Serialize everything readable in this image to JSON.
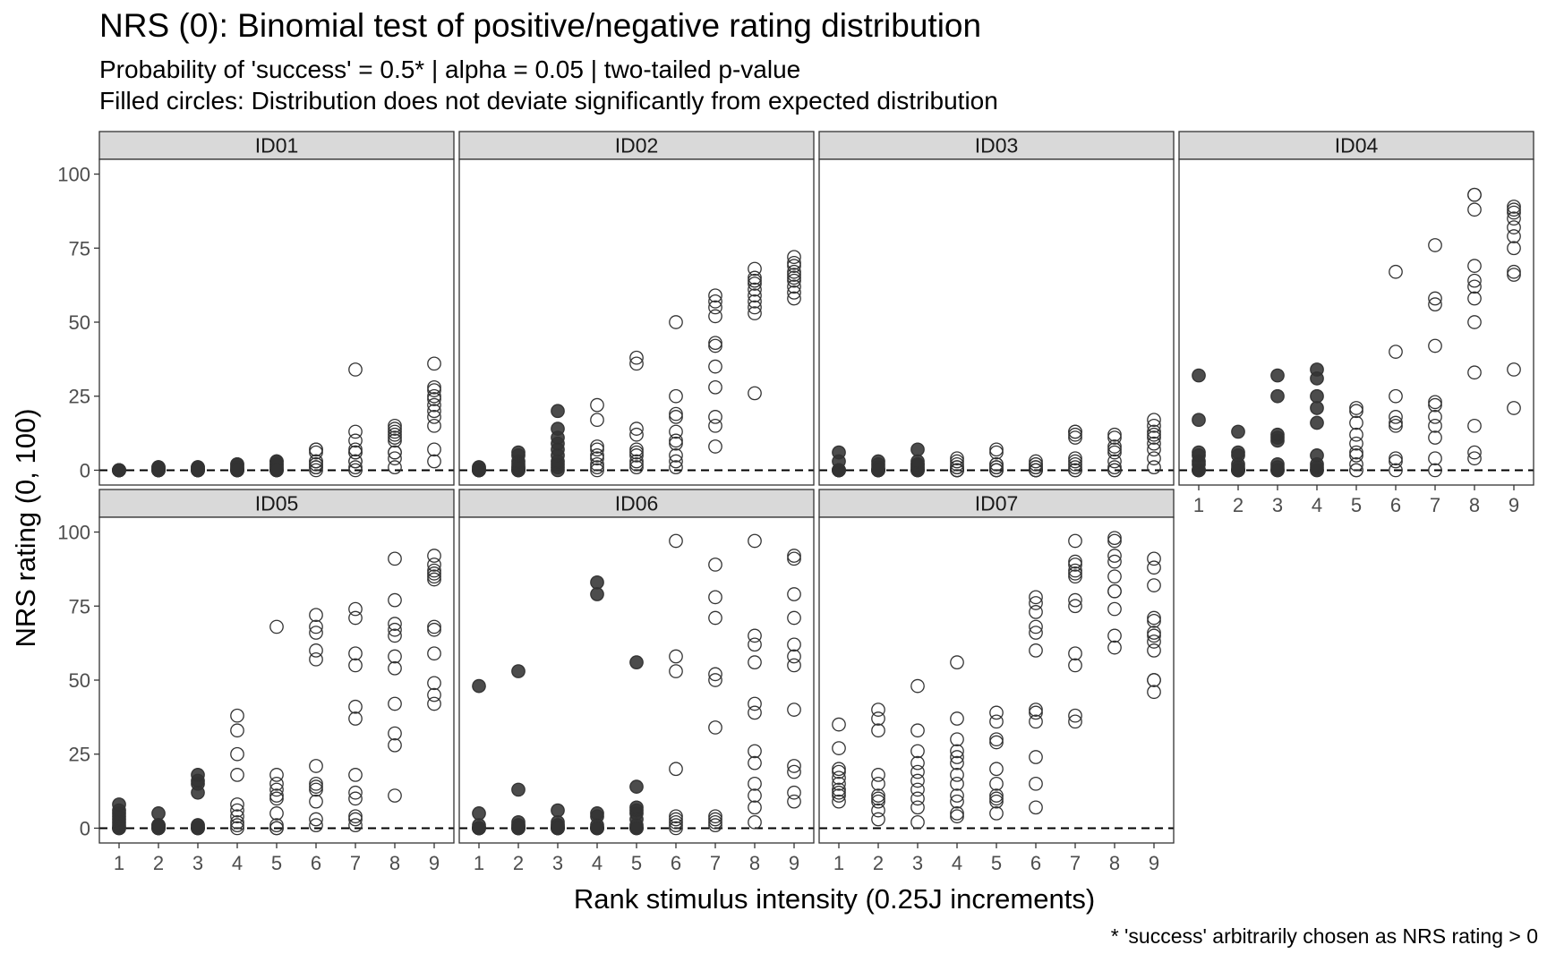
{
  "chart_data": {
    "type": "scatter",
    "title": "NRS (0): Binomial test of positive/negative rating distribution",
    "subtitle_lines": [
      "Probability of 'success' = 0.5* | alpha = 0.05 | two-tailed p-value",
      "Filled circles: Distribution does not deviate significantly from expected distribution"
    ],
    "xlabel": "Rank stimulus intensity (0.25J increments)",
    "ylabel": "NRS rating (0, 100)",
    "caption": "* 'success' arbitrarily chosen as NRS rating > 0",
    "x_ticks": [
      1,
      2,
      3,
      4,
      5,
      6,
      7,
      8,
      9
    ],
    "y_ticks": [
      0,
      25,
      50,
      75,
      100
    ],
    "ylim": [
      -5,
      105
    ],
    "xlim": [
      0.5,
      9.5
    ],
    "reference_line_y": 0,
    "colors": {
      "filled": "#333333",
      "open_stroke": "#333333",
      "strip": "#d9d9d9"
    },
    "panels": [
      {
        "id": "ID01",
        "filled": [
          1,
          2,
          3,
          4,
          5
        ],
        "points": {
          "1": [
            0,
            0,
            0,
            0,
            0,
            0,
            0,
            0,
            0,
            0
          ],
          "2": [
            0,
            0,
            0,
            0,
            0,
            0,
            1,
            1,
            1,
            0
          ],
          "3": [
            0,
            0,
            0,
            0,
            1,
            1,
            1,
            0,
            0,
            0
          ],
          "4": [
            0,
            0,
            0,
            1,
            1,
            2,
            2,
            0,
            0,
            0
          ],
          "5": [
            0,
            0,
            1,
            1,
            2,
            2,
            3,
            3,
            0,
            0
          ],
          "6": [
            0,
            1,
            1,
            2,
            3,
            3,
            6,
            7,
            7,
            2
          ],
          "7": [
            0,
            1,
            3,
            3,
            6,
            6,
            7,
            10,
            13,
            34
          ],
          "8": [
            1,
            4,
            6,
            6,
            10,
            11,
            12,
            13,
            14,
            15
          ],
          "9": [
            3,
            7,
            15,
            18,
            20,
            22,
            24,
            25,
            27,
            28,
            36
          ]
        }
      },
      {
        "id": "ID02",
        "filled": [
          1,
          2,
          3
        ],
        "points": {
          "1": [
            0,
            0,
            0,
            0,
            0,
            0,
            1,
            1,
            0,
            0
          ],
          "2": [
            0,
            0,
            0,
            0,
            1,
            1,
            2,
            3,
            5,
            6
          ],
          "3": [
            0,
            1,
            2,
            3,
            5,
            7,
            9,
            11,
            14,
            20
          ],
          "4": [
            0,
            1,
            2,
            4,
            5,
            7,
            8,
            17,
            22
          ],
          "5": [
            1,
            2,
            3,
            5,
            6,
            7,
            12,
            14,
            36,
            38
          ],
          "6": [
            1,
            3,
            5,
            9,
            10,
            13,
            18,
            19,
            25,
            50
          ],
          "7": [
            8,
            15,
            18,
            28,
            35,
            42,
            43,
            52,
            55,
            57,
            59
          ],
          "8": [
            26,
            53,
            55,
            57,
            59,
            61,
            63,
            64,
            65,
            68
          ],
          "9": [
            58,
            60,
            62,
            64,
            65,
            66,
            67,
            69,
            70,
            72
          ]
        }
      },
      {
        "id": "ID03",
        "filled": [
          1,
          2,
          3
        ],
        "points": {
          "1": [
            0,
            0,
            0,
            0,
            0,
            0,
            0,
            0,
            3,
            6
          ],
          "2": [
            0,
            0,
            0,
            0,
            0,
            0,
            1,
            2,
            3,
            0
          ],
          "3": [
            0,
            0,
            0,
            0,
            1,
            1,
            2,
            2,
            3,
            7
          ],
          "4": [
            0,
            0,
            1,
            1,
            2,
            3,
            4,
            0,
            0,
            0
          ],
          "5": [
            0,
            0,
            0,
            1,
            1,
            2,
            2,
            6,
            7,
            0
          ],
          "6": [
            0,
            0,
            0,
            1,
            1,
            2,
            2,
            3,
            0,
            0
          ],
          "7": [
            0,
            1,
            2,
            3,
            4,
            11,
            12,
            13,
            13,
            0
          ],
          "8": [
            0,
            0,
            1,
            3,
            6,
            7,
            8,
            11,
            12
          ],
          "9": [
            1,
            4,
            7,
            9,
            11,
            12,
            13,
            15,
            17
          ]
        }
      },
      {
        "id": "ID04",
        "filled": [
          1,
          2,
          3,
          4
        ],
        "points": {
          "1": [
            0,
            0,
            0,
            0,
            2,
            3,
            5,
            6,
            17,
            32
          ],
          "2": [
            0,
            0,
            0,
            0,
            1,
            2,
            5,
            6,
            13,
            0
          ],
          "3": [
            0,
            0,
            1,
            2,
            10,
            11,
            12,
            25,
            32,
            0
          ],
          "4": [
            0,
            0,
            1,
            2,
            5,
            16,
            21,
            25,
            31,
            34
          ],
          "5": [
            0,
            2,
            5,
            6,
            9,
            12,
            16,
            20,
            21,
            0
          ],
          "6": [
            0,
            3,
            4,
            15,
            16,
            18,
            25,
            40,
            67
          ],
          "7": [
            0,
            4,
            11,
            15,
            18,
            22,
            23,
            42,
            56,
            58,
            76
          ],
          "8": [
            4,
            6,
            15,
            33,
            50,
            58,
            62,
            64,
            69,
            88,
            93,
            93
          ],
          "9": [
            21,
            34,
            66,
            67,
            75,
            79,
            82,
            85,
            87,
            88,
            89
          ]
        }
      },
      {
        "id": "ID05",
        "filled": [
          1,
          2,
          3
        ],
        "points": {
          "1": [
            0,
            0,
            0,
            1,
            2,
            3,
            4,
            5,
            6,
            8
          ],
          "2": [
            0,
            0,
            0,
            0,
            0,
            1,
            1,
            1,
            1,
            5
          ],
          "3": [
            0,
            0,
            0,
            0,
            1,
            1,
            12,
            15,
            16,
            18
          ],
          "4": [
            0,
            1,
            2,
            4,
            6,
            8,
            18,
            25,
            33,
            38
          ],
          "5": [
            0,
            0,
            1,
            5,
            10,
            11,
            13,
            15,
            18,
            68
          ],
          "6": [
            1,
            3,
            9,
            13,
            14,
            15,
            21,
            57,
            60,
            66,
            68,
            72
          ],
          "7": [
            1,
            3,
            4,
            10,
            12,
            18,
            37,
            41,
            55,
            59,
            71,
            74
          ],
          "8": [
            11,
            28,
            32,
            42,
            54,
            58,
            65,
            67,
            69,
            77,
            91
          ],
          "9": [
            42,
            45,
            49,
            59,
            67,
            68,
            84,
            85,
            86,
            87,
            89,
            92
          ]
        }
      },
      {
        "id": "ID06",
        "filled": [
          1,
          2,
          3,
          4,
          5
        ],
        "points": {
          "1": [
            0,
            0,
            0,
            0,
            0,
            0,
            1,
            5,
            48,
            0
          ],
          "2": [
            0,
            0,
            0,
            0,
            1,
            1,
            2,
            13,
            53,
            0
          ],
          "3": [
            0,
            0,
            0,
            0,
            1,
            1,
            2,
            6,
            0,
            0
          ],
          "4": [
            0,
            0,
            0,
            1,
            4,
            5,
            79,
            83,
            0,
            0
          ],
          "5": [
            0,
            0,
            1,
            3,
            5,
            6,
            7,
            14,
            56,
            0
          ],
          "6": [
            0,
            1,
            2,
            3,
            4,
            20,
            53,
            58,
            97
          ],
          "7": [
            1,
            2,
            3,
            4,
            34,
            50,
            52,
            71,
            78,
            89
          ],
          "8": [
            2,
            7,
            11,
            15,
            22,
            26,
            39,
            42,
            56,
            62,
            65,
            97
          ],
          "9": [
            9,
            12,
            19,
            21,
            40,
            55,
            58,
            62,
            71,
            79,
            91,
            92
          ]
        }
      },
      {
        "id": "ID07",
        "filled": [],
        "points": {
          "1": [
            9,
            11,
            12,
            13,
            15,
            17,
            19,
            20,
            27,
            35
          ],
          "2": [
            3,
            6,
            9,
            10,
            11,
            15,
            18,
            33,
            37,
            40
          ],
          "3": [
            2,
            7,
            10,
            13,
            16,
            19,
            22,
            26,
            33,
            48
          ],
          "4": [
            4,
            5,
            9,
            11,
            15,
            18,
            22,
            24,
            26,
            30,
            37,
            56
          ],
          "5": [
            5,
            9,
            10,
            11,
            15,
            20,
            29,
            30,
            36,
            39
          ],
          "6": [
            7,
            15,
            24,
            36,
            39,
            40,
            60,
            66,
            68,
            73,
            76,
            78
          ],
          "7": [
            36,
            38,
            55,
            59,
            75,
            77,
            85,
            86,
            87,
            89,
            90,
            97
          ],
          "8": [
            61,
            65,
            74,
            80,
            80,
            85,
            90,
            92,
            97,
            98
          ],
          "9": [
            46,
            50,
            50,
            60,
            63,
            65,
            66,
            70,
            71,
            82,
            88,
            91
          ]
        }
      }
    ]
  }
}
